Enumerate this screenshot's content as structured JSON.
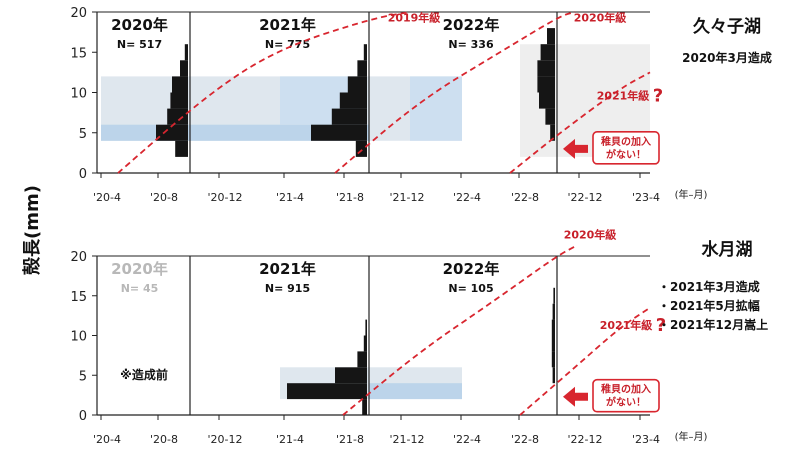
{
  "y_axis_title": "殻長(mm)",
  "x_unit_label": "(年–月)",
  "chart_data": [
    {
      "type": "histogram-timeline",
      "lake": "久々子湖",
      "notes": [
        "2020年3月造成"
      ],
      "x_ticks": [
        "'20-4",
        "'20-8",
        "'20-12",
        "'21-4",
        "'21-8",
        "'21-12",
        "'22-4",
        "'22-8",
        "'22-12",
        "'23-4"
      ],
      "ylim": [
        0,
        20
      ],
      "y_ticks": [
        "0",
        "5",
        "10",
        "15",
        "20"
      ],
      "sections": [
        {
          "year": "2020年",
          "n": "N= 517",
          "faint": false,
          "bars": [
            {
              "y0": 2,
              "y1": 4,
              "w": 0.8
            },
            {
              "y0": 4,
              "y1": 6,
              "w": 2.0
            },
            {
              "y0": 6,
              "y1": 8,
              "w": 1.3
            },
            {
              "y0": 8,
              "y1": 10,
              "w": 1.1
            },
            {
              "y0": 10,
              "y1": 12,
              "w": 1.0
            },
            {
              "y0": 12,
              "y1": 14,
              "w": 0.5
            },
            {
              "y0": 14,
              "y1": 16,
              "w": 0.2
            }
          ]
        },
        {
          "year": "2021年",
          "n": "N= 775",
          "faint": false,
          "bars": [
            {
              "y0": 2,
              "y1": 4,
              "w": 0.7
            },
            {
              "y0": 4,
              "y1": 6,
              "w": 3.5
            },
            {
              "y0": 6,
              "y1": 8,
              "w": 2.2
            },
            {
              "y0": 8,
              "y1": 10,
              "w": 1.7
            },
            {
              "y0": 10,
              "y1": 12,
              "w": 1.2
            },
            {
              "y0": 12,
              "y1": 14,
              "w": 0.6
            },
            {
              "y0": 14,
              "y1": 16,
              "w": 0.2
            }
          ]
        },
        {
          "year": "2022年",
          "n": "N= 336",
          "faint": false,
          "bars": [
            {
              "y0": 4,
              "y1": 6,
              "w": 0.3
            },
            {
              "y0": 6,
              "y1": 8,
              "w": 0.6
            },
            {
              "y0": 8,
              "y1": 10,
              "w": 1.0
            },
            {
              "y0": 10,
              "y1": 12,
              "w": 1.1
            },
            {
              "y0": 12,
              "y1": 14,
              "w": 1.1
            },
            {
              "y0": 14,
              "y1": 16,
              "w": 0.9
            },
            {
              "y0": 16,
              "y1": 18,
              "w": 0.5
            }
          ]
        }
      ],
      "cohorts": [
        "2019年級",
        "2020年級",
        "2021年級"
      ],
      "callout": [
        "稚貝の加入",
        "がない！"
      ]
    },
    {
      "type": "histogram-timeline",
      "lake": "水月湖",
      "notes": [
        "・2021年3月造成",
        "・2021年5月拡幅",
        "・2021年12月嵩上"
      ],
      "pre_note": "※造成前",
      "x_ticks": [
        "'20-4",
        "'20-8",
        "'20-12",
        "'21-4",
        "'21-8",
        "'21-12",
        "'22-4",
        "'22-8",
        "'22-12",
        "'23-4"
      ],
      "ylim": [
        0,
        20
      ],
      "y_ticks": [
        "0",
        "5",
        "10",
        "15",
        "20"
      ],
      "sections": [
        {
          "year": "2020年",
          "n": "N= 45",
          "faint": true,
          "bars": []
        },
        {
          "year": "2021年",
          "n": "N= 915",
          "faint": false,
          "bars": [
            {
              "y0": 0,
              "y1": 2,
              "w": 0.3
            },
            {
              "y0": 2,
              "y1": 4,
              "w": 5.0
            },
            {
              "y0": 4,
              "y1": 6,
              "w": 2.0
            },
            {
              "y0": 6,
              "y1": 8,
              "w": 0.6
            },
            {
              "y0": 8,
              "y1": 10,
              "w": 0.2
            },
            {
              "y0": 10,
              "y1": 12,
              "w": 0.1
            }
          ]
        },
        {
          "year": "2022年",
          "n": "N= 105",
          "faint": false,
          "bars": [
            {
              "y0": 4,
              "y1": 6,
              "w": 0.15
            },
            {
              "y0": 6,
              "y1": 8,
              "w": 0.2
            },
            {
              "y0": 8,
              "y1": 10,
              "w": 0.2
            },
            {
              "y0": 10,
              "y1": 12,
              "w": 0.2
            },
            {
              "y0": 12,
              "y1": 14,
              "w": 0.15
            },
            {
              "y0": 14,
              "y1": 16,
              "w": 0.1
            }
          ]
        }
      ],
      "cohorts": [
        "2020年級",
        "2021年級"
      ],
      "callout": [
        "稚貝の加入",
        "がない！"
      ]
    }
  ]
}
